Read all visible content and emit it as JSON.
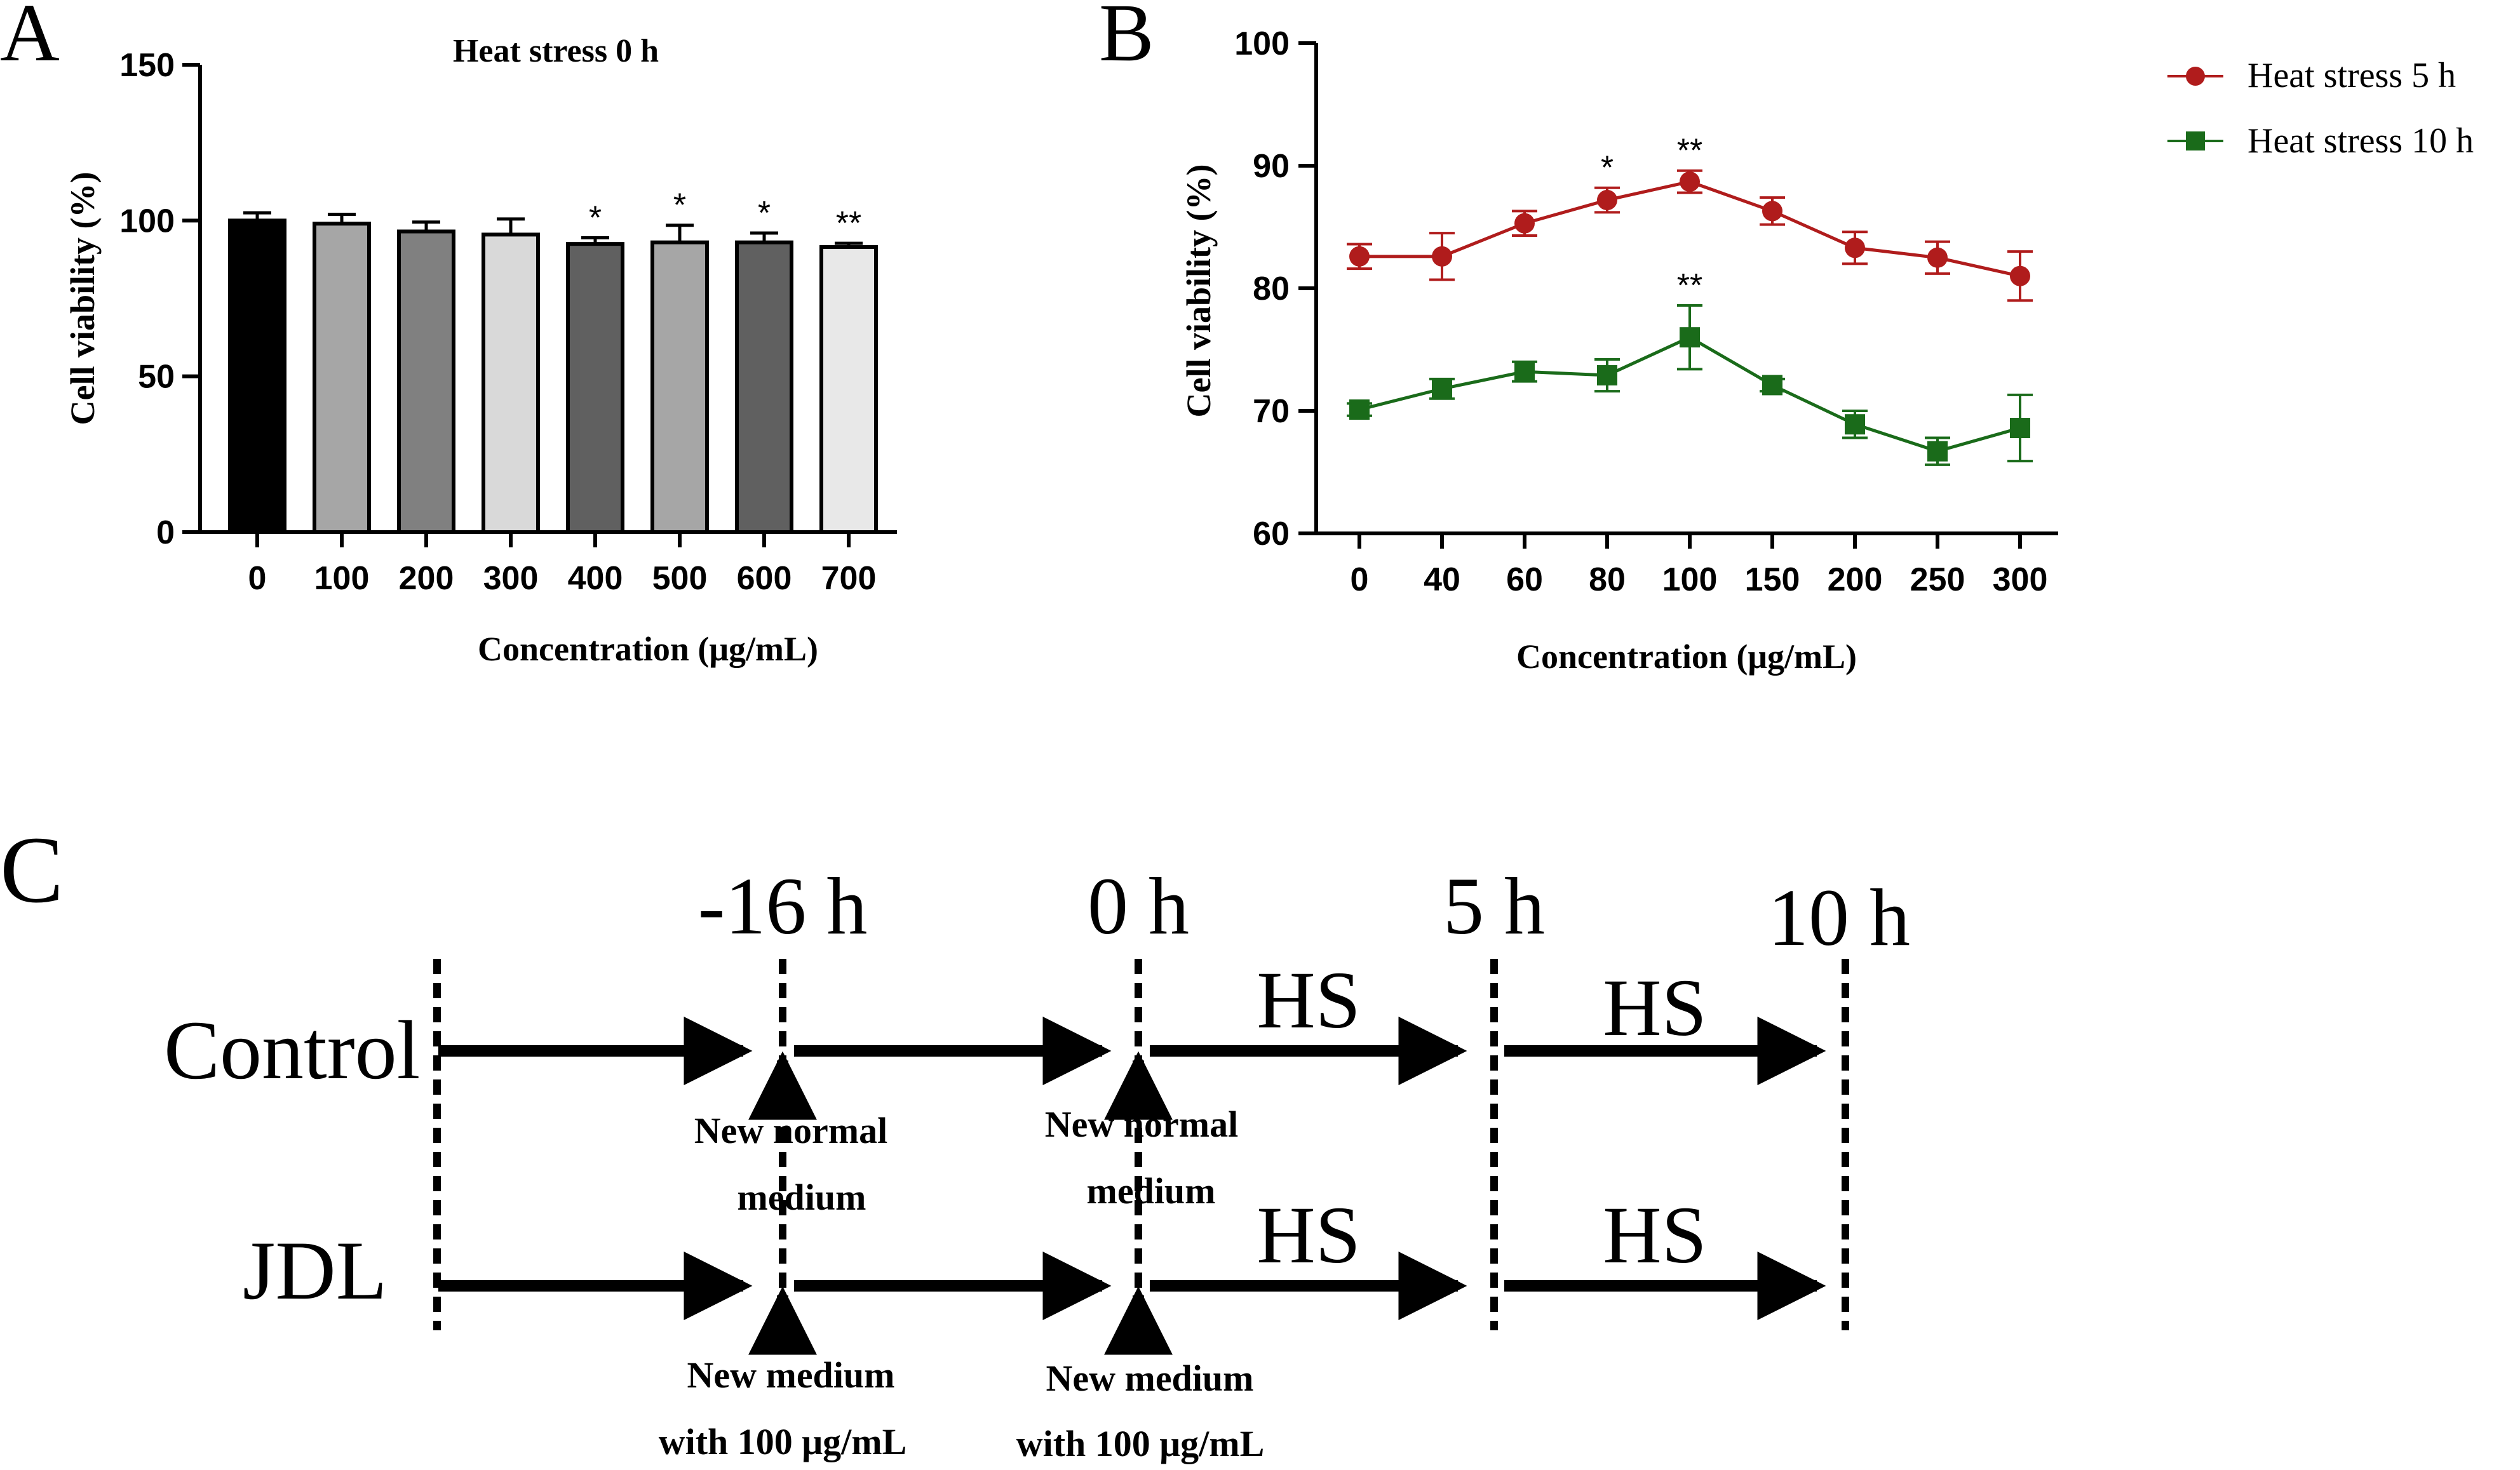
{
  "panel_labels": {
    "a": "A",
    "b": "B",
    "c": "C"
  },
  "chart_data": [
    {
      "type": "bar",
      "title": "Heat stress 0 h",
      "xlabel": "Concentration (μg/mL)",
      "ylabel": "Cell viability (%)",
      "ylim": [
        0,
        150
      ],
      "yticks": [
        0,
        50,
        100,
        150
      ],
      "categories": [
        "0",
        "100",
        "200",
        "300",
        "400",
        "500",
        "600",
        "700"
      ],
      "values": [
        100,
        99,
        96.5,
        95.5,
        92.5,
        93,
        93,
        91.5
      ],
      "errors": [
        2.5,
        3,
        3,
        5,
        2,
        5.5,
        3,
        1.2
      ],
      "significance": [
        "",
        "",
        "",
        "",
        "*",
        "*",
        "*",
        "**"
      ],
      "colors": [
        "#000000",
        "#a6a6a6",
        "#808080",
        "#d9d9d9",
        "#606060",
        "#a6a6a6",
        "#606060",
        "#e8e8e8"
      ]
    },
    {
      "type": "line",
      "xlabel": "Concentration (μg/mL)",
      "ylabel": "Cell viability (%)",
      "ylim": [
        60,
        100
      ],
      "yticks": [
        60,
        70,
        80,
        90,
        100
      ],
      "categories": [
        "0",
        "40",
        "60",
        "80",
        "100",
        "150",
        "200",
        "250",
        "300"
      ],
      "series": [
        {
          "name": "Heat stress 5 h",
          "color": "#b01c1c",
          "marker": "circle",
          "values": [
            82.6,
            82.6,
            85.3,
            87.2,
            88.7,
            86.3,
            83.3,
            82.5,
            81.0
          ],
          "errors": [
            1.0,
            1.9,
            1.0,
            1.0,
            0.9,
            1.1,
            1.3,
            1.3,
            2.0
          ],
          "significance": [
            "",
            "",
            "",
            "*",
            "**",
            "",
            "",
            "",
            ""
          ]
        },
        {
          "name": "Heat stress 10 h",
          "color": "#1a6b1a",
          "marker": "square",
          "values": [
            70.1,
            71.8,
            73.2,
            72.9,
            76.0,
            72.1,
            68.9,
            66.7,
            68.6
          ],
          "errors": [
            0.5,
            0.8,
            0.8,
            1.3,
            2.6,
            0.5,
            1.1,
            1.1,
            2.7
          ],
          "significance": [
            "",
            "",
            "",
            "",
            "**",
            "",
            "",
            "",
            ""
          ]
        }
      ]
    }
  ],
  "diagram": {
    "timepoints": [
      "-16 h",
      "0 h",
      "5 h",
      "10 h"
    ],
    "groups": [
      "Control",
      "JDL"
    ],
    "hs_label": "HS",
    "control_notes": [
      {
        "line1": "New normal",
        "line2": "medium"
      },
      {
        "line1": "New normal",
        "line2": "medium"
      }
    ],
    "jdl_notes": [
      {
        "line1": "New medium",
        "line2": "with 100 μg/mL"
      },
      {
        "line1": "New medium",
        "line2": "with 100 μg/mL"
      }
    ]
  }
}
